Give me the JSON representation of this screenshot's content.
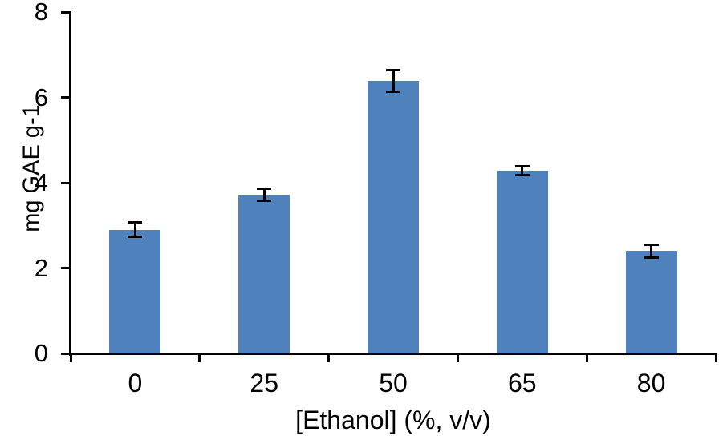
{
  "chart_data": {
    "type": "bar",
    "title": "",
    "categories": [
      "0",
      "25",
      "50",
      "65",
      "80"
    ],
    "values": [
      2.9,
      3.72,
      6.38,
      4.28,
      2.4
    ],
    "errors": [
      0.17,
      0.14,
      0.25,
      0.11,
      0.15
    ],
    "xlabel": "[Ethanol] (%, v/v)",
    "ylabel": "mg GAE g-1",
    "ylim": [
      0,
      8
    ],
    "yticks": [
      0,
      2,
      4,
      6,
      8
    ],
    "grid": false,
    "legend": false,
    "bar_color": "#4F81BD",
    "error_bar_color": "#000000",
    "axis_color": "#000000",
    "text_color": "#000000"
  }
}
